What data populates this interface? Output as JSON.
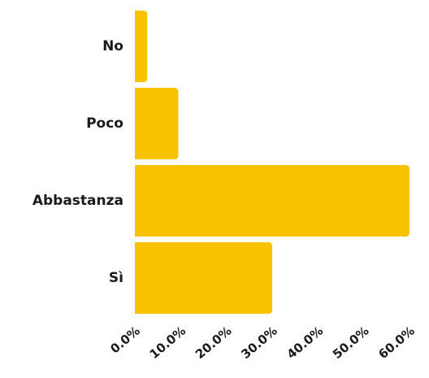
{
  "chart_data": {
    "type": "bar",
    "orientation": "horizontal",
    "categories": [
      "No",
      "Poco",
      "Abbastanza",
      "Sì"
    ],
    "values": [
      2.7,
      9.5,
      60.0,
      30.0
    ],
    "x_ticks": [
      "0.0%",
      "10.0%",
      "20.0%",
      "30.0%",
      "40.0%",
      "50.0%",
      "60.0%"
    ],
    "xlim": [
      0,
      60
    ],
    "grid": false,
    "legend": "none",
    "bar_color": "#F7C200"
  }
}
